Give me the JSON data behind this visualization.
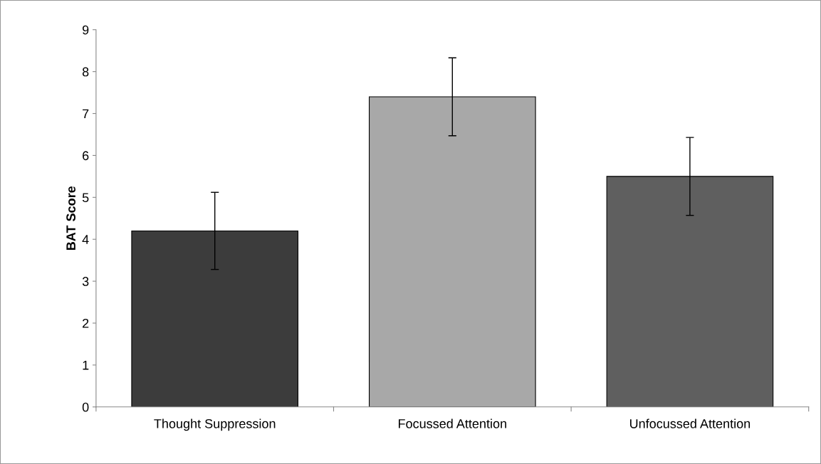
{
  "chart_data": {
    "type": "bar",
    "ylabel": "BAT Score",
    "categories": [
      "Thought Suppression",
      "Focussed Attention",
      "Unfocussed Attention"
    ],
    "values": [
      4.2,
      7.4,
      5.5
    ],
    "colors": [
      "#3c3c3c",
      "#a8a8a8",
      "#5f5f5f"
    ],
    "errors": [
      0.92,
      0.93,
      0.93
    ],
    "ylim": [
      0,
      9
    ],
    "yticks": [
      0,
      1,
      2,
      3,
      4,
      5,
      6,
      7,
      8,
      9
    ],
    "grid": false,
    "legend": false
  }
}
